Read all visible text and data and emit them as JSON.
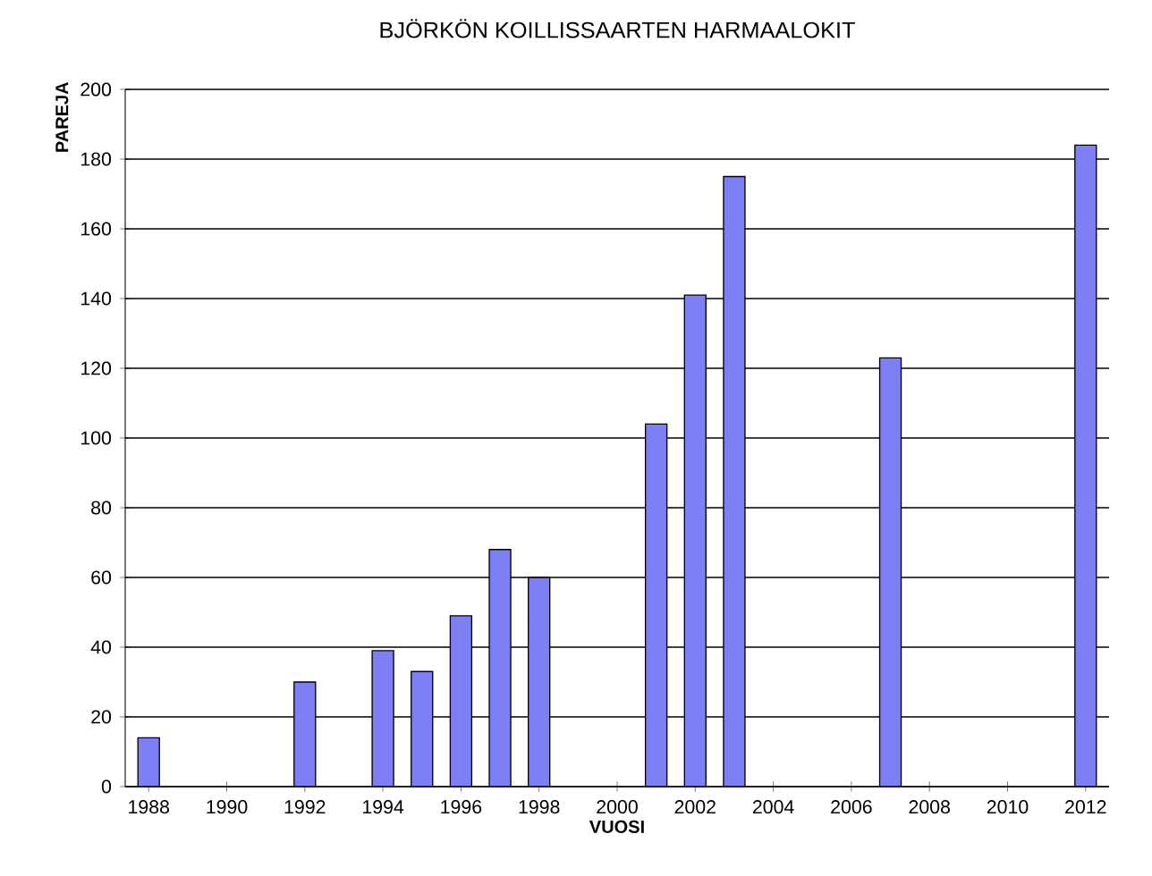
{
  "chart_data": {
    "type": "bar",
    "title": "BJÖRKÖN KOILLISSAARTEN HARMAALOKIT",
    "xlabel": "VUOSI",
    "ylabel": "PAREJA",
    "x": [
      1988,
      1992,
      1994,
      1995,
      1996,
      1997,
      1998,
      2001,
      2002,
      2003,
      2007,
      2012
    ],
    "values": [
      14,
      30,
      39,
      33,
      49,
      68,
      60,
      104,
      141,
      175,
      123,
      184
    ],
    "color": "#7f7ff5",
    "xlim": [
      1987.4,
      2012.6
    ],
    "xticks": [
      1988,
      1990,
      1992,
      1994,
      1996,
      1998,
      2000,
      2002,
      2004,
      2006,
      2008,
      2010,
      2012
    ],
    "ylim": [
      0,
      200
    ],
    "yticks": [
      0,
      20,
      40,
      60,
      80,
      100,
      120,
      140,
      160,
      180,
      200
    ],
    "grid": "y"
  }
}
